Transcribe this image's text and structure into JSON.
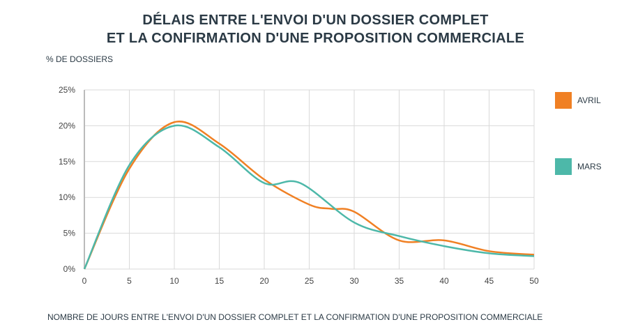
{
  "chart_data": {
    "type": "line",
    "title": [
      "DÉLAIS ENTRE L'ENVOI D'UN DOSSIER COMPLET",
      "ET LA CONFIRMATION D'UNE PROPOSITION COMMERCIALE"
    ],
    "ylabel": "% DE DOSSIERS",
    "xlabel": "NOMBRE DE JOURS ENTRE L'ENVOI D'UN DOSSIER COMPLET ET LA CONFIRMATION D'UNE PROPOSITION COMMERCIALE",
    "xlim": [
      0,
      50
    ],
    "ylim": [
      0,
      25
    ],
    "xticks": [
      0,
      5,
      10,
      15,
      20,
      25,
      30,
      35,
      40,
      45,
      50
    ],
    "yticks": [
      0,
      5,
      10,
      15,
      20,
      25
    ],
    "ytick_labels": [
      "0%",
      "5%",
      "10%",
      "15%",
      "20%",
      "25%"
    ],
    "grid": true,
    "legend": "right",
    "series": [
      {
        "name": "AVRIL",
        "color": "#f08024",
        "x": [
          0,
          5,
          10,
          15,
          20,
          25,
          27.5,
          30,
          35,
          40,
          45,
          50
        ],
        "y": [
          0,
          14,
          20.5,
          17.5,
          12.5,
          9,
          8.4,
          8,
          4,
          4,
          2.5,
          2
        ]
      },
      {
        "name": "MARS",
        "color": "#4db8a9",
        "x": [
          0,
          5,
          10,
          15,
          20,
          24,
          30,
          35,
          40,
          45,
          50
        ],
        "y": [
          0,
          14.5,
          20,
          17,
          12,
          12,
          6.5,
          4.6,
          3.2,
          2.2,
          1.8
        ]
      }
    ]
  }
}
